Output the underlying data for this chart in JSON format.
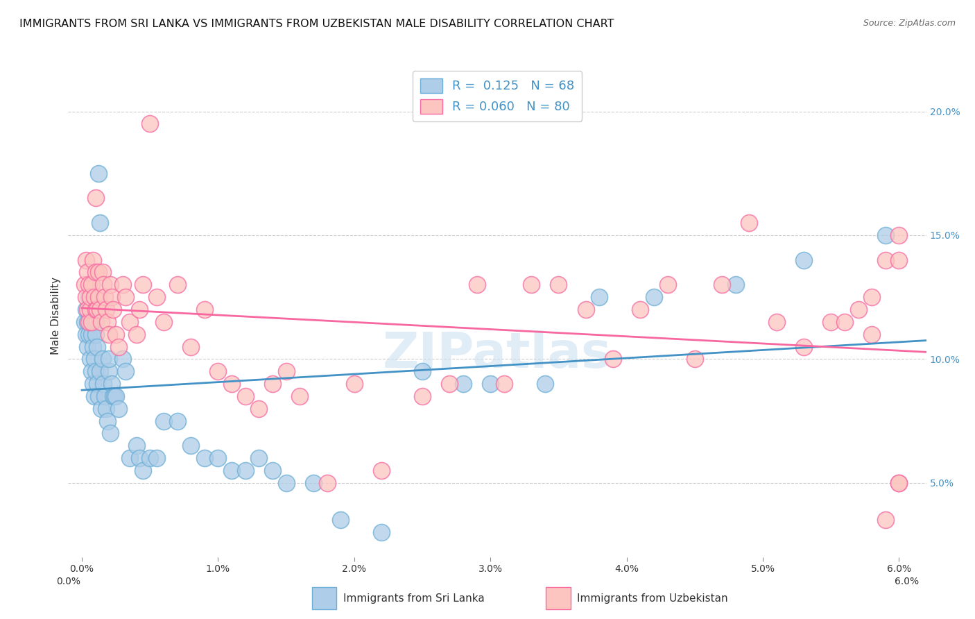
{
  "title": "IMMIGRANTS FROM SRI LANKA VS IMMIGRANTS FROM UZBEKISTAN MALE DISABILITY CORRELATION CHART",
  "source": "Source: ZipAtlas.com",
  "ylabel": "Male Disability",
  "x_ticks": [
    0.0,
    0.01,
    0.02,
    0.03,
    0.04,
    0.05,
    0.06
  ],
  "x_tick_labels": [
    "0.0%",
    "1.0%",
    "2.0%",
    "3.0%",
    "4.0%",
    "5.0%",
    "6.0%"
  ],
  "y_ticks_right": [
    0.05,
    0.1,
    0.15,
    0.2
  ],
  "y_tick_labels_right": [
    "5.0%",
    "10.0%",
    "15.0%",
    "20.0%"
  ],
  "xlim": [
    -0.001,
    0.062
  ],
  "ylim": [
    0.02,
    0.215
  ],
  "series": [
    {
      "name": "Immigrants from Sri Lanka",
      "R": 0.125,
      "N": 68,
      "fill_color": "#aecde8",
      "edge_color": "#6baed6",
      "line_color": "#4292c6",
      "x": [
        0.0002,
        0.0003,
        0.0003,
        0.0004,
        0.0004,
        0.0005,
        0.0005,
        0.0006,
        0.0006,
        0.0007,
        0.0007,
        0.0008,
        0.0008,
        0.0009,
        0.0009,
        0.001,
        0.001,
        0.001,
        0.0011,
        0.0011,
        0.0012,
        0.0012,
        0.0013,
        0.0013,
        0.0014,
        0.0015,
        0.0016,
        0.0017,
        0.0018,
        0.0019,
        0.002,
        0.002,
        0.0021,
        0.0022,
        0.0023,
        0.0024,
        0.0025,
        0.0027,
        0.003,
        0.0032,
        0.0035,
        0.004,
        0.0042,
        0.0045,
        0.005,
        0.0055,
        0.006,
        0.007,
        0.008,
        0.009,
        0.01,
        0.011,
        0.012,
        0.013,
        0.014,
        0.015,
        0.017,
        0.019,
        0.022,
        0.025,
        0.028,
        0.03,
        0.034,
        0.038,
        0.042,
        0.048,
        0.053,
        0.059
      ],
      "y": [
        0.115,
        0.11,
        0.12,
        0.105,
        0.115,
        0.125,
        0.11,
        0.1,
        0.115,
        0.095,
        0.11,
        0.09,
        0.105,
        0.085,
        0.1,
        0.115,
        0.095,
        0.11,
        0.09,
        0.105,
        0.175,
        0.085,
        0.155,
        0.095,
        0.08,
        0.1,
        0.09,
        0.085,
        0.08,
        0.075,
        0.095,
        0.1,
        0.07,
        0.09,
        0.085,
        0.085,
        0.085,
        0.08,
        0.1,
        0.095,
        0.06,
        0.065,
        0.06,
        0.055,
        0.06,
        0.06,
        0.075,
        0.075,
        0.065,
        0.06,
        0.06,
        0.055,
        0.055,
        0.06,
        0.055,
        0.05,
        0.05,
        0.035,
        0.03,
        0.095,
        0.09,
        0.09,
        0.09,
        0.125,
        0.125,
        0.13,
        0.14,
        0.15
      ]
    },
    {
      "name": "Immigrants from Uzbekistan",
      "R": 0.06,
      "N": 80,
      "fill_color": "#fcc5c0",
      "edge_color": "#f768a1",
      "line_color": "#f768a1",
      "x": [
        0.0002,
        0.0003,
        0.0003,
        0.0004,
        0.0004,
        0.0005,
        0.0005,
        0.0006,
        0.0006,
        0.0007,
        0.0007,
        0.0008,
        0.0009,
        0.001,
        0.001,
        0.001,
        0.0011,
        0.0012,
        0.0012,
        0.0013,
        0.0014,
        0.0015,
        0.0016,
        0.0017,
        0.0018,
        0.0019,
        0.002,
        0.0021,
        0.0022,
        0.0023,
        0.0025,
        0.0027,
        0.003,
        0.0032,
        0.0035,
        0.004,
        0.0042,
        0.0045,
        0.005,
        0.0055,
        0.006,
        0.007,
        0.008,
        0.009,
        0.01,
        0.011,
        0.012,
        0.013,
        0.014,
        0.015,
        0.016,
        0.018,
        0.02,
        0.022,
        0.025,
        0.027,
        0.029,
        0.031,
        0.033,
        0.035,
        0.037,
        0.039,
        0.041,
        0.043,
        0.045,
        0.047,
        0.049,
        0.051,
        0.053,
        0.055,
        0.056,
        0.057,
        0.058,
        0.058,
        0.059,
        0.059,
        0.06,
        0.06,
        0.06,
        0.06
      ],
      "y": [
        0.13,
        0.125,
        0.14,
        0.12,
        0.135,
        0.115,
        0.13,
        0.12,
        0.125,
        0.115,
        0.13,
        0.14,
        0.125,
        0.165,
        0.12,
        0.135,
        0.12,
        0.135,
        0.125,
        0.12,
        0.115,
        0.135,
        0.13,
        0.125,
        0.12,
        0.115,
        0.11,
        0.13,
        0.125,
        0.12,
        0.11,
        0.105,
        0.13,
        0.125,
        0.115,
        0.11,
        0.12,
        0.13,
        0.195,
        0.125,
        0.115,
        0.13,
        0.105,
        0.12,
        0.095,
        0.09,
        0.085,
        0.08,
        0.09,
        0.095,
        0.085,
        0.05,
        0.09,
        0.055,
        0.085,
        0.09,
        0.13,
        0.09,
        0.13,
        0.13,
        0.12,
        0.1,
        0.12,
        0.13,
        0.1,
        0.13,
        0.155,
        0.115,
        0.105,
        0.115,
        0.115,
        0.12,
        0.11,
        0.125,
        0.14,
        0.035,
        0.14,
        0.15,
        0.05,
        0.05
      ]
    }
  ],
  "background_color": "#ffffff",
  "grid_color": "#cccccc",
  "title_fontsize": 11.5,
  "axis_label_fontsize": 11,
  "tick_fontsize": 10,
  "source_fontsize": 9,
  "watermark": "ZIPatlas",
  "blue_color": "#4292c6",
  "pink_color": "#f768a1"
}
